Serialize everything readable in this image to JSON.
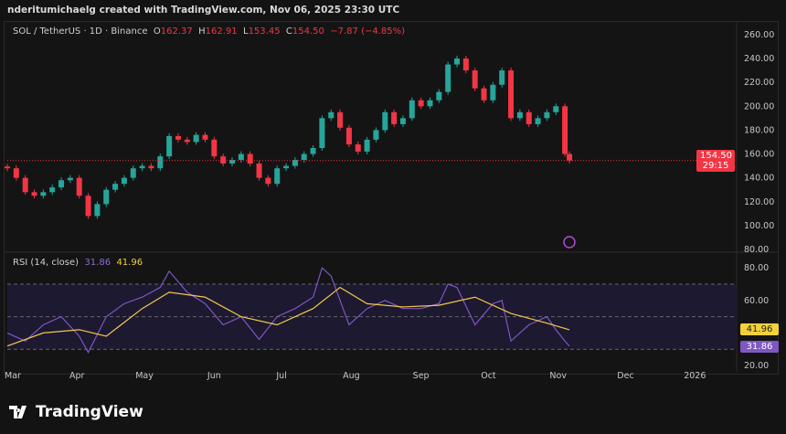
{
  "credit": "nderitumichaelg created with TradingView.com, Nov 06, 2025 23:30 UTC",
  "legend": {
    "symbol": "SOL / TetherUS · 1D · Binance",
    "o_label": "O",
    "o": "162.37",
    "h_label": "H",
    "h": "162.91",
    "l_label": "L",
    "l": "153.45",
    "c_label": "C",
    "c": "154.50",
    "change": "−7.87 (−4.85%)"
  },
  "price_tag": {
    "price": "154.50",
    "countdown": "29:15"
  },
  "rsi_legend": {
    "name": "RSI (14, close)",
    "rsi": "31.86",
    "ma": "41.96"
  },
  "brand": "TradingView",
  "colors": {
    "up": "#26a69a",
    "down": "#f23645",
    "rsi": "#7e57c2",
    "rsi_ma": "#f2c94c"
  },
  "chart_data": [
    {
      "type": "candlestick",
      "title": "SOL / TetherUS · 1D · Binance",
      "ylim": [
        80,
        260
      ],
      "yticks": [
        "260.00",
        "240.00",
        "220.00",
        "200.00",
        "180.00",
        "160.00",
        "140.00",
        "120.00",
        "100.00",
        "80.00"
      ],
      "xticks": [
        "Mar",
        "Apr",
        "May",
        "Jun",
        "Jul",
        "Aug",
        "Sep",
        "Oct",
        "Nov",
        "Dec",
        "2026"
      ],
      "closes": [
        [
          "03-01",
          148
        ],
        [
          "03-05",
          140
        ],
        [
          "03-09",
          128
        ],
        [
          "03-13",
          125
        ],
        [
          "03-17",
          128
        ],
        [
          "03-21",
          132
        ],
        [
          "03-25",
          138
        ],
        [
          "03-29",
          140
        ],
        [
          "04-02",
          125
        ],
        [
          "04-06",
          108
        ],
        [
          "04-10",
          118
        ],
        [
          "04-14",
          130
        ],
        [
          "04-18",
          135
        ],
        [
          "04-22",
          140
        ],
        [
          "04-26",
          148
        ],
        [
          "04-30",
          150
        ],
        [
          "05-04",
          148
        ],
        [
          "05-08",
          158
        ],
        [
          "05-12",
          175
        ],
        [
          "05-16",
          172
        ],
        [
          "05-20",
          170
        ],
        [
          "05-24",
          176
        ],
        [
          "05-28",
          172
        ],
        [
          "06-01",
          158
        ],
        [
          "06-05",
          152
        ],
        [
          "06-09",
          155
        ],
        [
          "06-13",
          160
        ],
        [
          "06-17",
          152
        ],
        [
          "06-21",
          140
        ],
        [
          "06-25",
          135
        ],
        [
          "06-29",
          148
        ],
        [
          "07-03",
          150
        ],
        [
          "07-07",
          155
        ],
        [
          "07-11",
          160
        ],
        [
          "07-15",
          165
        ],
        [
          "07-19",
          190
        ],
        [
          "07-23",
          195
        ],
        [
          "07-27",
          182
        ],
        [
          "07-31",
          168
        ],
        [
          "08-04",
          162
        ],
        [
          "08-08",
          172
        ],
        [
          "08-12",
          180
        ],
        [
          "08-16",
          195
        ],
        [
          "08-20",
          185
        ],
        [
          "08-24",
          190
        ],
        [
          "08-28",
          205
        ],
        [
          "09-01",
          200
        ],
        [
          "09-05",
          205
        ],
        [
          "09-09",
          212
        ],
        [
          "09-13",
          235
        ],
        [
          "09-17",
          240
        ],
        [
          "09-21",
          230
        ],
        [
          "09-25",
          215
        ],
        [
          "09-29",
          205
        ],
        [
          "10-03",
          218
        ],
        [
          "10-07",
          230
        ],
        [
          "10-11",
          190
        ],
        [
          "10-15",
          195
        ],
        [
          "10-19",
          185
        ],
        [
          "10-23",
          190
        ],
        [
          "10-27",
          195
        ],
        [
          "10-31",
          200
        ],
        [
          "11-04",
          160
        ],
        [
          "11-06",
          154.5
        ]
      ]
    },
    {
      "type": "line",
      "title": "RSI (14, close)",
      "ylim": [
        20,
        85
      ],
      "yticks": [
        "80.00",
        "60.00",
        "20.00"
      ],
      "bands": [
        30,
        50,
        70
      ],
      "series": [
        {
          "name": "RSI",
          "values": [
            [
              "03-01",
              40
            ],
            [
              "03-09",
              35
            ],
            [
              "03-17",
              45
            ],
            [
              "03-25",
              50
            ],
            [
              "04-02",
              38
            ],
            [
              "04-06",
              28
            ],
            [
              "04-14",
              50
            ],
            [
              "04-22",
              58
            ],
            [
              "04-30",
              62
            ],
            [
              "05-08",
              68
            ],
            [
              "05-12",
              78
            ],
            [
              "05-20",
              65
            ],
            [
              "05-28",
              58
            ],
            [
              "06-05",
              45
            ],
            [
              "06-13",
              50
            ],
            [
              "06-21",
              36
            ],
            [
              "06-29",
              50
            ],
            [
              "07-07",
              55
            ],
            [
              "07-15",
              62
            ],
            [
              "07-19",
              80
            ],
            [
              "07-23",
              75
            ],
            [
              "07-31",
              45
            ],
            [
              "08-08",
              55
            ],
            [
              "08-16",
              60
            ],
            [
              "08-24",
              55
            ],
            [
              "09-01",
              55
            ],
            [
              "09-09",
              58
            ],
            [
              "09-13",
              70
            ],
            [
              "09-17",
              68
            ],
            [
              "09-25",
              45
            ],
            [
              "10-03",
              58
            ],
            [
              "10-07",
              60
            ],
            [
              "10-11",
              35
            ],
            [
              "10-19",
              45
            ],
            [
              "10-27",
              50
            ],
            [
              "10-31",
              42
            ],
            [
              "11-04",
              35
            ],
            [
              "11-06",
              31.86
            ]
          ]
        },
        {
          "name": "RSI MA",
          "values": [
            [
              "03-01",
              32
            ],
            [
              "03-17",
              40
            ],
            [
              "04-02",
              42
            ],
            [
              "04-14",
              38
            ],
            [
              "04-30",
              55
            ],
            [
              "05-12",
              65
            ],
            [
              "05-28",
              62
            ],
            [
              "06-13",
              50
            ],
            [
              "06-29",
              45
            ],
            [
              "07-15",
              55
            ],
            [
              "07-27",
              68
            ],
            [
              "08-08",
              58
            ],
            [
              "08-24",
              56
            ],
            [
              "09-09",
              57
            ],
            [
              "09-25",
              62
            ],
            [
              "10-11",
              52
            ],
            [
              "10-27",
              46
            ],
            [
              "11-06",
              41.96
            ]
          ]
        }
      ]
    }
  ]
}
